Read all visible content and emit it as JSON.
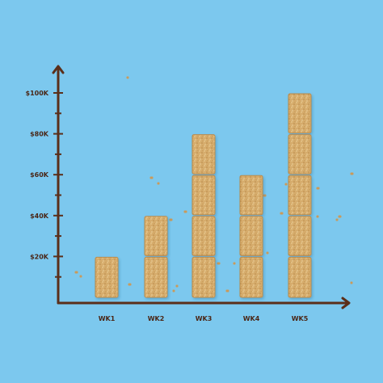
{
  "colors": {
    "background": "#7cc8ee",
    "axis": "#5b2f1a",
    "bar_fill": "#d6ac6c",
    "bar_edge": "#b98b4c",
    "crumb": "#c99a5b"
  },
  "chart_data": {
    "type": "bar",
    "title": "",
    "xlabel": "",
    "ylabel": "",
    "categories": [
      "WK1",
      "WK2",
      "WK3",
      "WK4",
      "WK5"
    ],
    "values": [
      20000,
      40000,
      80000,
      60000,
      100000
    ],
    "ylim": [
      0,
      100000
    ],
    "yticks": [
      20000,
      40000,
      60000,
      80000,
      100000
    ],
    "ytick_labels": [
      "$20K",
      "$40K",
      "$60K",
      "$80K",
      "$100K"
    ],
    "segment_value": 20000,
    "grid": false,
    "legend": "none"
  }
}
